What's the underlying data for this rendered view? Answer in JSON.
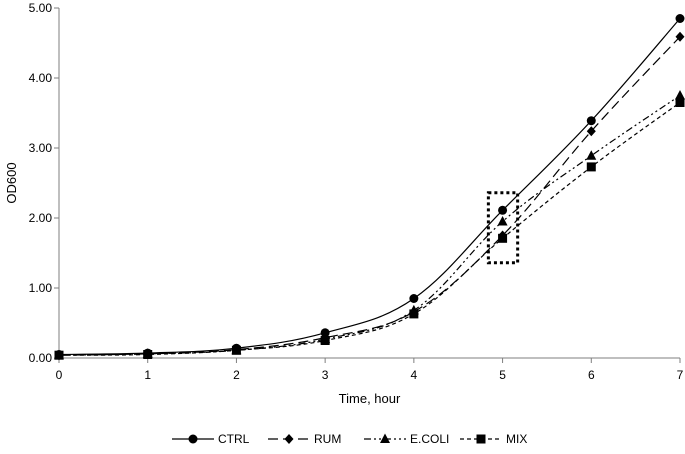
{
  "chart_data": {
    "type": "line",
    "title": "",
    "xlabel": "Time, hour",
    "ylabel": "OD600",
    "xlim": [
      0,
      7
    ],
    "ylim": [
      0,
      5
    ],
    "x_ticks": [
      "0",
      "1",
      "2",
      "3",
      "4",
      "5",
      "6",
      "7"
    ],
    "y_ticks": [
      "0.00",
      "1.00",
      "2.00",
      "3.00",
      "4.00",
      "5.00"
    ],
    "grid": false,
    "legend_position": "bottom",
    "x": [
      0,
      1,
      2,
      3,
      4,
      5,
      6,
      7
    ],
    "series": [
      {
        "name": "CTRL",
        "marker": "circle",
        "dash": "solid",
        "values": [
          0.05,
          0.07,
          0.14,
          0.36,
          0.85,
          2.11,
          3.39,
          4.85
        ]
      },
      {
        "name": "RUM",
        "marker": "diamond",
        "dash": "long-dash",
        "values": [
          0.04,
          0.06,
          0.12,
          0.29,
          0.66,
          1.75,
          3.24,
          4.59
        ]
      },
      {
        "name": "E.COLI",
        "marker": "triangle",
        "dash": "dash-dot-dot",
        "values": [
          0.04,
          0.06,
          0.11,
          0.27,
          0.68,
          1.95,
          2.89,
          3.75
        ]
      },
      {
        "name": "MIX",
        "marker": "square",
        "dash": "short-dash",
        "values": [
          0.04,
          0.05,
          0.11,
          0.25,
          0.63,
          1.71,
          2.73,
          3.65
        ]
      }
    ],
    "annotation": {
      "type": "dotted-box",
      "x_range": [
        4.84,
        5.17
      ],
      "y_range": [
        1.36,
        2.36
      ]
    },
    "line_color": "#000000"
  }
}
